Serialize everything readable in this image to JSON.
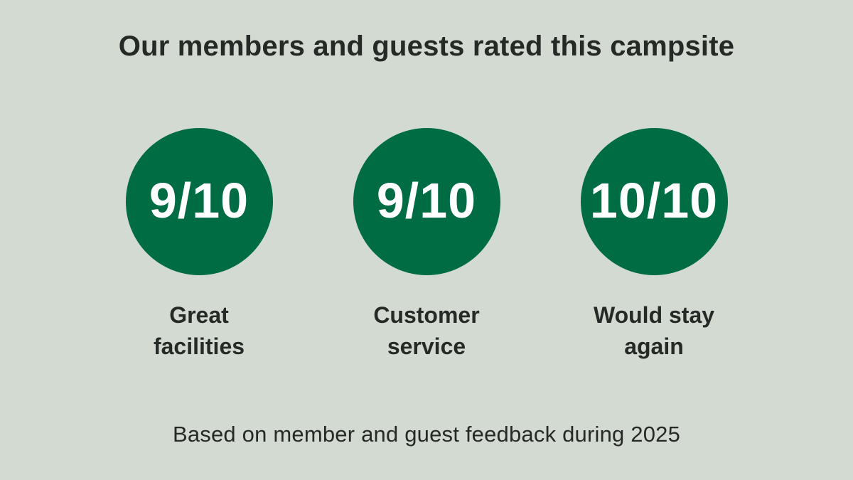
{
  "title": "Our members and guests rated this campsite",
  "ratings": [
    {
      "score": "9/10",
      "label": "Great facilities"
    },
    {
      "score": "9/10",
      "label": "Customer service"
    },
    {
      "score": "10/10",
      "label": "Would stay again"
    }
  ],
  "footnote": "Based on member and guest feedback during 2025",
  "colors": {
    "background": "#D3DAD2",
    "circle": "#006C43",
    "text_dark": "#262A27",
    "score_text": "#FFFFFF"
  },
  "chart_data": {
    "type": "table",
    "title": "Our members and guests rated this campsite",
    "categories": [
      "Great facilities",
      "Customer service",
      "Would stay again"
    ],
    "values": [
      9,
      9,
      10
    ],
    "value_max": 10,
    "value_format": "score/10",
    "annotations": [
      "Based on member and guest feedback during 2025"
    ],
    "legend_position": "none",
    "grid": false
  }
}
